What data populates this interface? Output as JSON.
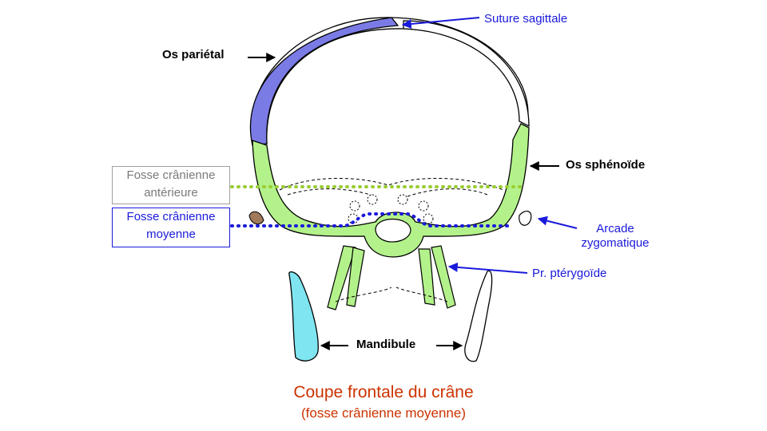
{
  "colors": {
    "parietal": "#7b7be6",
    "sphenoid": "#b3f28a",
    "mandible_left": "#7fe5f0",
    "orange_bone": "#a07a5a",
    "guide_green": "#9acd32",
    "guide_blue": "#1a1adb",
    "label_blue": "#1a1adb",
    "title_red": "#cc3300",
    "box_gray_border": "#a0a0a0",
    "box_blue_border": "#1a1adb"
  },
  "labels": {
    "parietal": "Os pariétal",
    "sagittal": "Suture sagittale",
    "sphenoid": "Os sphénoïde",
    "zygomatic_line1": "Arcade",
    "zygomatic_line2": "zygomatique",
    "pterygoid": "Pr. ptérygoïde",
    "mandible": "Mandibule"
  },
  "boxes": {
    "anterior_line1": "Fosse crânienne",
    "anterior_line2": "antérieure",
    "middle_line1": "Fosse crânienne",
    "middle_line2": "moyenne"
  },
  "title": {
    "main": "Coupe frontale du crâne",
    "sub": "(fosse crânienne  moyenne)"
  }
}
